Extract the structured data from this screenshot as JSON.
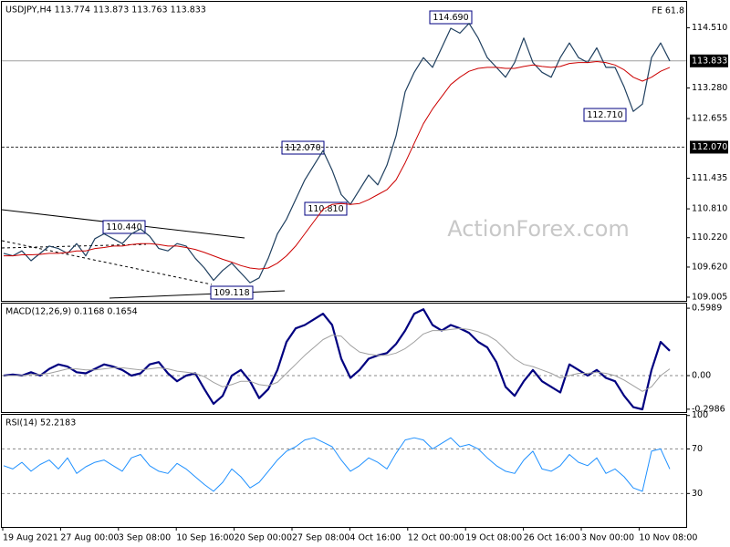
{
  "chart_data": [
    {
      "type": "line",
      "title": "USDJPY,H4 113.774 113.873 113.763 113.833",
      "ylim": [
        108.93,
        115.04
      ],
      "yticks": [
        {
          "value": 114.51,
          "label": "114.510"
        },
        {
          "value": 113.28,
          "label": "113.280"
        },
        112.655,
        111.435,
        {
          "value": 110.81,
          "label": "110.810"
        },
        {
          "value": 110.22,
          "label": "110.220"
        },
        {
          "value": 109.62,
          "label": "109.620"
        },
        109.005
      ],
      "hlines": [
        {
          "value": 113.833,
          "style": "solid"
        },
        {
          "value": 112.07,
          "label": "112.070",
          "style": "dashed"
        }
      ],
      "annotations": [
        "114.690",
        "112.070",
        "110.810",
        "110.440",
        "109.118",
        "112.710",
        "FE 61.8"
      ],
      "watermark": "ActionForex.com",
      "series": [
        {
          "color": "#1f3f5f",
          "width": 1.2,
          "values": [
            109.9,
            109.85,
            109.95,
            109.75,
            109.9,
            110.05,
            110.0,
            109.9,
            110.1,
            109.85,
            110.2,
            110.3,
            110.2,
            110.1,
            110.3,
            110.4,
            110.25,
            110.0,
            109.95,
            110.1,
            110.05,
            109.8,
            109.6,
            109.35,
            109.55,
            109.7,
            109.5,
            109.3,
            109.4,
            109.8,
            110.3,
            110.6,
            111.0,
            111.4,
            111.7,
            112.0,
            111.6,
            111.1,
            110.9,
            111.2,
            111.5,
            111.3,
            111.7,
            112.3,
            113.2,
            113.6,
            113.9,
            113.7,
            114.1,
            114.5,
            114.4,
            114.6,
            114.3,
            113.9,
            113.7,
            113.5,
            113.8,
            114.3,
            113.8,
            113.6,
            113.5,
            113.9,
            114.2,
            113.9,
            113.8,
            114.1,
            113.7,
            113.7,
            113.3,
            112.8,
            112.95,
            113.9,
            114.2,
            113.833
          ]
        },
        {
          "color": "#cc0000",
          "width": 1,
          "values": [
            109.85,
            109.85,
            109.87,
            109.87,
            109.88,
            109.9,
            109.9,
            109.92,
            109.95,
            109.95,
            110.0,
            110.02,
            110.05,
            110.05,
            110.08,
            110.1,
            110.1,
            110.08,
            110.05,
            110.05,
            110.02,
            109.98,
            109.92,
            109.85,
            109.78,
            109.72,
            109.65,
            109.6,
            109.58,
            109.6,
            109.7,
            109.85,
            110.05,
            110.3,
            110.55,
            110.8,
            110.9,
            110.92,
            110.9,
            110.92,
            111.0,
            111.1,
            111.2,
            111.4,
            111.75,
            112.15,
            112.55,
            112.85,
            113.1,
            113.35,
            113.5,
            113.62,
            113.68,
            113.7,
            113.7,
            113.68,
            113.68,
            113.72,
            113.75,
            113.72,
            113.7,
            113.72,
            113.78,
            113.8,
            113.8,
            113.82,
            113.8,
            113.75,
            113.65,
            113.5,
            113.42,
            113.5,
            113.62,
            113.7
          ]
        }
      ]
    },
    {
      "type": "line",
      "title": "MACD(12,26,9) 0.1168 0.1654",
      "ylim": [
        -0.324,
        0.64
      ],
      "yticks": [
        0.5989,
        {
          "value": 0,
          "label": "0.00"
        },
        -0.2986
      ],
      "levels": [
        0
      ],
      "series": [
        {
          "color": "#000080",
          "width": 2.2,
          "values": [
            0.0,
            0.01,
            0.0,
            0.03,
            0.0,
            0.06,
            0.1,
            0.08,
            0.03,
            0.02,
            0.06,
            0.1,
            0.08,
            0.05,
            0.0,
            0.02,
            0.1,
            0.12,
            0.02,
            -0.05,
            0.0,
            0.02,
            -0.12,
            -0.25,
            -0.18,
            0.0,
            0.05,
            -0.05,
            -0.2,
            -0.12,
            0.05,
            0.3,
            0.42,
            0.45,
            0.5,
            0.55,
            0.45,
            0.15,
            -0.02,
            0.05,
            0.15,
            0.18,
            0.2,
            0.28,
            0.4,
            0.55,
            0.59,
            0.45,
            0.4,
            0.45,
            0.42,
            0.38,
            0.3,
            0.25,
            0.12,
            -0.1,
            -0.18,
            -0.05,
            0.05,
            -0.05,
            -0.1,
            -0.15,
            0.1,
            0.05,
            0.0,
            0.05,
            -0.02,
            -0.05,
            -0.18,
            -0.28,
            -0.3,
            0.05,
            0.3,
            0.22
          ]
        },
        {
          "color": "#a0a0a0",
          "width": 1,
          "values": [
            0.0,
            0.0,
            0.0,
            0.01,
            0.01,
            0.02,
            0.04,
            0.06,
            0.06,
            0.05,
            0.05,
            0.06,
            0.07,
            0.07,
            0.06,
            0.05,
            0.06,
            0.07,
            0.06,
            0.04,
            0.03,
            0.02,
            -0.01,
            -0.06,
            -0.1,
            -0.08,
            -0.05,
            -0.05,
            -0.08,
            -0.09,
            -0.06,
            0.02,
            0.1,
            0.18,
            0.25,
            0.32,
            0.36,
            0.35,
            0.27,
            0.21,
            0.19,
            0.18,
            0.18,
            0.2,
            0.24,
            0.3,
            0.37,
            0.4,
            0.4,
            0.41,
            0.42,
            0.41,
            0.39,
            0.36,
            0.31,
            0.23,
            0.15,
            0.1,
            0.08,
            0.05,
            0.02,
            -0.02,
            0.0,
            0.02,
            0.02,
            0.03,
            0.02,
            0.0,
            -0.04,
            -0.09,
            -0.14,
            -0.1,
            0.0,
            0.06
          ]
        }
      ]
    },
    {
      "type": "line",
      "title": "RSI(14) 52.2183",
      "ylim": [
        0,
        100.6
      ],
      "yticks": [
        100,
        70,
        30
      ],
      "levels": [
        70,
        30
      ],
      "series": [
        {
          "color": "#1e90ff",
          "width": 1,
          "values": [
            55,
            52,
            58,
            50,
            56,
            60,
            52,
            62,
            48,
            54,
            58,
            60,
            55,
            50,
            62,
            65,
            55,
            50,
            48,
            57,
            52,
            45,
            38,
            32,
            40,
            52,
            45,
            35,
            40,
            50,
            60,
            68,
            72,
            78,
            80,
            76,
            72,
            60,
            50,
            55,
            62,
            58,
            52,
            66,
            78,
            80,
            78,
            70,
            75,
            80,
            72,
            74,
            70,
            62,
            55,
            50,
            48,
            60,
            68,
            52,
            50,
            55,
            65,
            58,
            55,
            62,
            48,
            52,
            45,
            35,
            32,
            68,
            70,
            52
          ]
        }
      ]
    }
  ],
  "time_axis": [
    "19 Aug 2021",
    "27 Aug 00:00",
    "3 Sep 08:00",
    "10 Sep 16:00",
    "20 Sep 00:00",
    "27 Sep 08:00",
    "4 Oct 16:00",
    "12 Oct 00:00",
    "19 Oct 08:00",
    "26 Oct 16:00",
    "3 Nov 00:00",
    "10 Nov 08:00"
  ]
}
